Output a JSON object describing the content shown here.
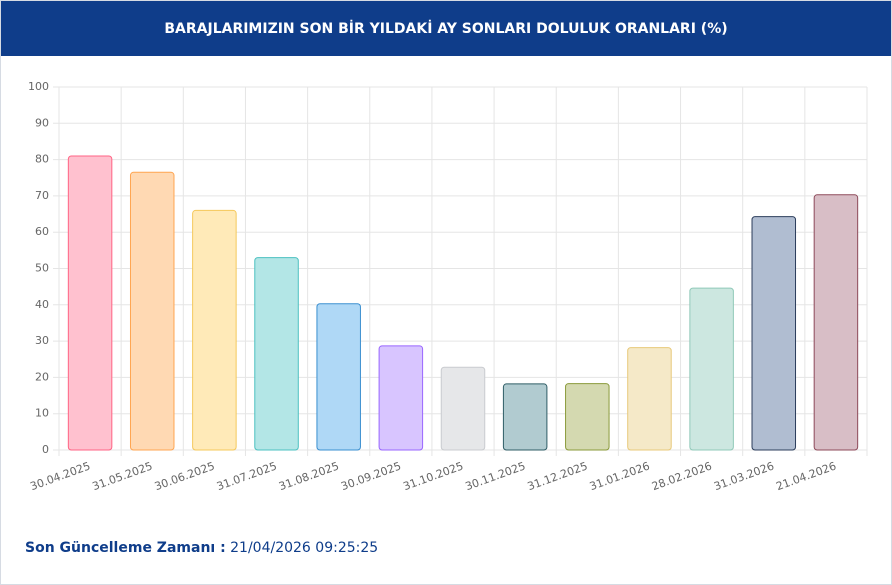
{
  "chart_data": {
    "type": "bar",
    "title": "BARAJLARIMIZIN SON BİR YILDAKİ AY SONLARI DOLULUK ORANLARI (%)",
    "categories": [
      "30.04.2025",
      "31.05.2025",
      "30.06.2025",
      "31.07.2025",
      "31.08.2025",
      "30.09.2025",
      "31.10.2025",
      "30.11.2025",
      "31.12.2025",
      "31.01.2026",
      "28.02.2026",
      "31.03.2026",
      "21.04.2026"
    ],
    "values": [
      81,
      76.5,
      66,
      53,
      40.3,
      28.7,
      22.8,
      18.2,
      18.3,
      28.2,
      44.6,
      64.3,
      70.3
    ],
    "colors": [
      "#ffc1cf",
      "#ffd9b3",
      "#ffeab8",
      "#b3e6e6",
      "#afd8f6",
      "#d8c5ff",
      "#e6e7e9",
      "#b1cbd0",
      "#d4d9b0",
      "#f5e9c8",
      "#cce7e0",
      "#b0bdd1",
      "#d8bec6"
    ],
    "border_colors": [
      "#ff6384",
      "#ffa550",
      "#f5c85a",
      "#4bc0c0",
      "#3a8fd0",
      "#9966ff",
      "#c9cbcf",
      "#2f5d66",
      "#8a9a3a",
      "#e8c97a",
      "#8fc9b8",
      "#2c3e5c",
      "#8e4a5a"
    ],
    "ylim": [
      0,
      100
    ],
    "yticks": [
      0,
      10,
      20,
      30,
      40,
      50,
      60,
      70,
      80,
      90,
      100
    ],
    "grid": true
  },
  "footer": {
    "label": "Son Güncelleme Zamanı :",
    "value": "21/04/2026 09:25:25"
  }
}
